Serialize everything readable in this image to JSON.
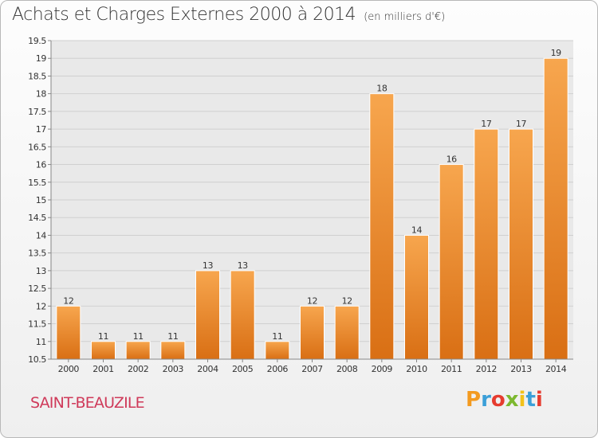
{
  "title": "Achats et Charges Externes 2000 à 2014",
  "unit_label": "(en milliers d'€)",
  "commune": "SAINT-BEAUZILE",
  "logo": [
    "P",
    "r",
    "o",
    "x",
    "i",
    "t",
    "i"
  ],
  "colors": {
    "bar_light": "#f7a64e",
    "bar_dark": "#d96f14",
    "plot_bg": "#e9e9e9",
    "grid": "#d0d0d0",
    "commune_text": "#cf3a5a"
  },
  "chart_data": {
    "type": "bar",
    "title": "Achats et Charges Externes 2000 à 2014",
    "subtitle": "(en milliers d'€)",
    "categories": [
      "2000",
      "2001",
      "2002",
      "2003",
      "2004",
      "2005",
      "2006",
      "2007",
      "2008",
      "2009",
      "2010",
      "2011",
      "2012",
      "2013",
      "2014"
    ],
    "values": [
      12,
      11,
      11,
      11,
      13,
      13,
      11,
      12,
      12,
      18,
      14,
      16,
      17,
      17,
      19
    ],
    "value_labels": [
      "12",
      "11",
      "11",
      "11",
      "13",
      "13",
      "11",
      "12",
      "12",
      "18",
      "14",
      "16",
      "17",
      "17",
      "19"
    ],
    "bar_tops": [
      12,
      11,
      11,
      11,
      13,
      13,
      11,
      12,
      12,
      18,
      14,
      16,
      17,
      17,
      19
    ],
    "ylim": [
      10.5,
      19.5
    ],
    "yticks": [
      10.5,
      11,
      11.5,
      12,
      12.5,
      13,
      13.5,
      14,
      14.5,
      15,
      15.5,
      16,
      16.5,
      17,
      17.5,
      18,
      18.5,
      19,
      19.5
    ],
    "ytick_labels": [
      "10.5",
      "11",
      "11.5",
      "12",
      "12.5",
      "13",
      "13.5",
      "14",
      "14.5",
      "15",
      "15.5",
      "16",
      "16.5",
      "17",
      "17.5",
      "18",
      "18.5",
      "19",
      "19.5"
    ],
    "xlabel": "",
    "ylabel": "",
    "grid": true
  }
}
